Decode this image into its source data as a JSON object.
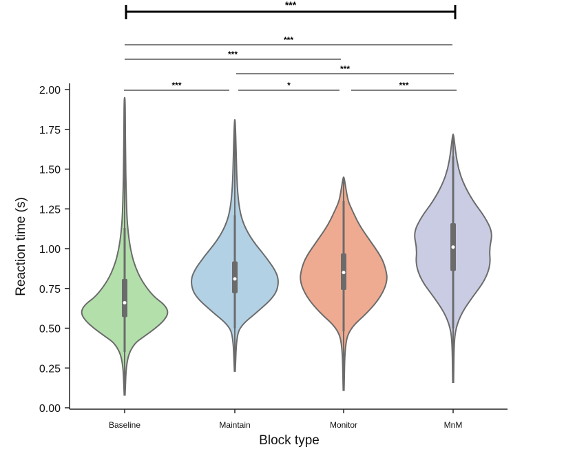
{
  "chart_data": {
    "type": "violin",
    "title": "",
    "xlabel": "Block type",
    "ylabel": "Reaction time (s)",
    "ylim": [
      0,
      2.0
    ],
    "yticks": [
      "0.00",
      "0.25",
      "0.50",
      "0.75",
      "1.00",
      "1.25",
      "1.50",
      "1.75",
      "2.00"
    ],
    "ytick_values": [
      0,
      0.25,
      0.5,
      0.75,
      1.0,
      1.25,
      1.5,
      1.75,
      2.0
    ],
    "categories": [
      "Baseline",
      "Maintain",
      "Monitor",
      "MnM"
    ],
    "series": [
      {
        "category": "Baseline",
        "color": "#b2dfaa",
        "min": 0.08,
        "max": 1.95,
        "q1": 0.57,
        "median": 0.66,
        "q3": 0.81,
        "whisker_low": 0.35,
        "whisker_high": 1.13,
        "profile": [
          [
            0.08,
            0.01
          ],
          [
            0.3,
            0.04
          ],
          [
            0.4,
            0.2
          ],
          [
            0.45,
            0.45
          ],
          [
            0.5,
            0.7
          ],
          [
            0.55,
            0.9
          ],
          [
            0.6,
            1.0
          ],
          [
            0.65,
            0.9
          ],
          [
            0.7,
            0.65
          ],
          [
            0.8,
            0.38
          ],
          [
            0.9,
            0.22
          ],
          [
            1.0,
            0.13
          ],
          [
            1.1,
            0.08
          ],
          [
            1.2,
            0.05
          ],
          [
            1.4,
            0.03
          ],
          [
            1.6,
            0.02
          ],
          [
            1.8,
            0.015
          ],
          [
            1.95,
            0.01
          ]
        ]
      },
      {
        "category": "Maintain",
        "color": "#b3d1e5",
        "min": 0.23,
        "max": 1.81,
        "q1": 0.72,
        "median": 0.81,
        "q3": 0.92,
        "whisker_low": 0.5,
        "whisker_high": 1.21,
        "profile": [
          [
            0.23,
            0.01
          ],
          [
            0.45,
            0.04
          ],
          [
            0.52,
            0.15
          ],
          [
            0.6,
            0.5
          ],
          [
            0.7,
            0.9
          ],
          [
            0.78,
            1.0
          ],
          [
            0.85,
            0.95
          ],
          [
            0.95,
            0.7
          ],
          [
            1.05,
            0.4
          ],
          [
            1.15,
            0.2
          ],
          [
            1.25,
            0.1
          ],
          [
            1.4,
            0.05
          ],
          [
            1.6,
            0.03
          ],
          [
            1.81,
            0.01
          ]
        ]
      },
      {
        "category": "Monitor",
        "color": "#efab91",
        "min": 0.11,
        "max": 1.45,
        "q1": 0.74,
        "median": 0.85,
        "q3": 0.97,
        "whisker_low": 0.48,
        "whisker_high": 1.3,
        "profile": [
          [
            0.11,
            0.01
          ],
          [
            0.4,
            0.03
          ],
          [
            0.5,
            0.15
          ],
          [
            0.6,
            0.55
          ],
          [
            0.7,
            0.85
          ],
          [
            0.8,
            1.0
          ],
          [
            0.88,
            0.95
          ],
          [
            0.95,
            0.85
          ],
          [
            1.05,
            0.6
          ],
          [
            1.15,
            0.35
          ],
          [
            1.25,
            0.18
          ],
          [
            1.3,
            0.1
          ],
          [
            1.38,
            0.05
          ],
          [
            1.45,
            0.01
          ]
        ]
      },
      {
        "category": "MnM",
        "color": "#c9cce3",
        "min": 0.16,
        "max": 1.72,
        "q1": 0.86,
        "median": 1.01,
        "q3": 1.16,
        "whisker_low": 0.5,
        "whisker_high": 1.58,
        "profile": [
          [
            0.16,
            0.01
          ],
          [
            0.4,
            0.02
          ],
          [
            0.5,
            0.06
          ],
          [
            0.6,
            0.2
          ],
          [
            0.7,
            0.45
          ],
          [
            0.8,
            0.72
          ],
          [
            0.9,
            0.85
          ],
          [
            1.0,
            0.82
          ],
          [
            1.1,
            0.9
          ],
          [
            1.2,
            0.72
          ],
          [
            1.3,
            0.45
          ],
          [
            1.4,
            0.25
          ],
          [
            1.5,
            0.12
          ],
          [
            1.6,
            0.06
          ],
          [
            1.72,
            0.01
          ]
        ]
      }
    ],
    "significance": [
      {
        "from": "Baseline",
        "to": "MnM",
        "label": "***",
        "emphasis": true
      },
      {
        "from": "Baseline",
        "to": "MnM",
        "label": "***",
        "emphasis": false
      },
      {
        "from": "Baseline",
        "to": "Monitor",
        "label": "***",
        "emphasis": false
      },
      {
        "from": "Maintain",
        "to": "MnM",
        "label": "***",
        "emphasis": false
      },
      {
        "from": "Baseline",
        "to": "Maintain",
        "label": "***",
        "emphasis": false
      },
      {
        "from": "Maintain",
        "to": "Monitor",
        "label": "*",
        "emphasis": false
      },
      {
        "from": "Monitor",
        "to": "MnM",
        "label": "***",
        "emphasis": false
      }
    ],
    "grid": false,
    "legend": "none"
  }
}
